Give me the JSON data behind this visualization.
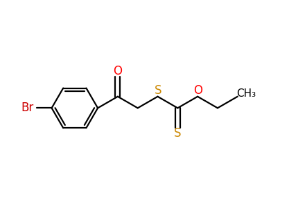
{
  "background_color": "#ffffff",
  "line_color": "#000000",
  "bond_width": 1.6,
  "font_size": 12,
  "atom_colors": {
    "O": "#ff0000",
    "S": "#cc8800",
    "Br": "#cc0000",
    "C": "#000000"
  }
}
